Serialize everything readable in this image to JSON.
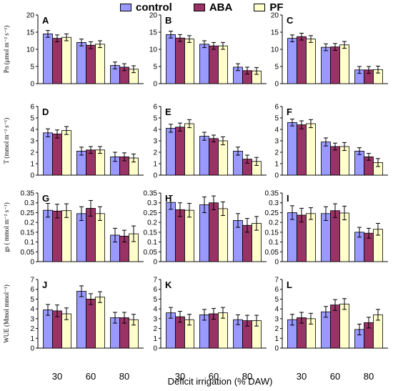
{
  "legend": {
    "control": "control",
    "aba": "ABA",
    "pf": "PF"
  },
  "colors": {
    "control": "#9999ff",
    "aba": "#993366",
    "pf": "#ffffcc"
  },
  "axes": {
    "x_title": "Deficit irrigation (% DAW)",
    "x_categories": [
      "30",
      "60",
      "80"
    ],
    "rows": [
      {
        "ylabel": "Pn (μmol m⁻² s⁻¹)",
        "ylim": [
          0,
          20
        ],
        "ticks": [
          "0",
          "5",
          "10",
          "15",
          "20"
        ]
      },
      {
        "ylabel": "T (mmol m⁻² s⁻¹)",
        "ylim": [
          0,
          6
        ],
        "ticks": [
          "0",
          "1",
          "2",
          "3",
          "4",
          "5",
          "6"
        ]
      },
      {
        "ylabel": "gs ( mmol m⁻² s⁻¹)",
        "ylim": [
          0,
          0.35
        ],
        "ticks": [
          "0",
          "0.05",
          "0.1",
          "0.15",
          "0.2",
          "0.25",
          "0.3",
          "0.35"
        ]
      },
      {
        "ylabel": "WUE (Mmol mmol⁻¹)",
        "ylim": [
          0,
          7
        ],
        "ticks": [
          "0",
          "1",
          "2",
          "3",
          "4",
          "5",
          "6",
          "7"
        ]
      }
    ]
  },
  "chart_data": [
    {
      "type": "bar",
      "panel": "A",
      "categories": [
        "30",
        "60",
        "80"
      ],
      "ylim": [
        0,
        20
      ],
      "series": [
        {
          "name": "control",
          "values": [
            14.5,
            12.0,
            5.3
          ],
          "errors": [
            1.0,
            1.0,
            1.0
          ]
        },
        {
          "name": "ABA",
          "values": [
            13.2,
            11.2,
            4.8
          ],
          "errors": [
            1.0,
            1.0,
            1.0
          ]
        },
        {
          "name": "PF",
          "values": [
            13.5,
            11.5,
            4.2
          ],
          "errors": [
            1.0,
            1.0,
            1.0
          ]
        }
      ]
    },
    {
      "type": "bar",
      "panel": "B",
      "categories": [
        "30",
        "60",
        "80"
      ],
      "ylim": [
        0,
        20
      ],
      "series": [
        {
          "name": "control",
          "values": [
            14.3,
            11.5,
            4.8
          ],
          "errors": [
            1.0,
            1.0,
            1.0
          ]
        },
        {
          "name": "ABA",
          "values": [
            13.3,
            11.0,
            3.8
          ],
          "errors": [
            1.0,
            1.0,
            1.0
          ]
        },
        {
          "name": "PF",
          "values": [
            13.0,
            11.0,
            3.7
          ],
          "errors": [
            1.0,
            1.0,
            1.0
          ]
        }
      ]
    },
    {
      "type": "bar",
      "panel": "C",
      "categories": [
        "30",
        "60",
        "80"
      ],
      "ylim": [
        0,
        20
      ],
      "series": [
        {
          "name": "control",
          "values": [
            13.2,
            10.6,
            4.0
          ],
          "errors": [
            1.0,
            1.0,
            1.0
          ]
        },
        {
          "name": "ABA",
          "values": [
            13.7,
            10.7,
            4.0
          ],
          "errors": [
            1.0,
            1.0,
            1.0
          ]
        },
        {
          "name": "PF",
          "values": [
            13.0,
            11.3,
            4.1
          ],
          "errors": [
            1.0,
            1.0,
            1.0
          ]
        }
      ]
    },
    {
      "type": "bar",
      "panel": "D",
      "categories": [
        "30",
        "60",
        "80"
      ],
      "ylim": [
        0,
        6
      ],
      "series": [
        {
          "name": "control",
          "values": [
            3.7,
            2.1,
            1.6
          ],
          "errors": [
            0.35,
            0.35,
            0.4
          ]
        },
        {
          "name": "ABA",
          "values": [
            3.6,
            2.2,
            1.6
          ],
          "errors": [
            0.35,
            0.3,
            0.35
          ]
        },
        {
          "name": "PF",
          "values": [
            3.9,
            2.2,
            1.5
          ],
          "errors": [
            0.35,
            0.3,
            0.35
          ]
        }
      ]
    },
    {
      "type": "bar",
      "panel": "E",
      "categories": [
        "30",
        "60",
        "80"
      ],
      "ylim": [
        0,
        6
      ],
      "series": [
        {
          "name": "control",
          "values": [
            4.1,
            3.4,
            2.1
          ],
          "errors": [
            0.35,
            0.35,
            0.35
          ]
        },
        {
          "name": "ABA",
          "values": [
            4.2,
            3.2,
            1.4
          ],
          "errors": [
            0.35,
            0.3,
            0.35
          ]
        },
        {
          "name": "PF",
          "values": [
            4.5,
            3.0,
            1.2
          ],
          "errors": [
            0.35,
            0.35,
            0.35
          ]
        }
      ]
    },
    {
      "type": "bar",
      "panel": "F",
      "categories": [
        "30",
        "60",
        "80"
      ],
      "ylim": [
        0,
        6
      ],
      "series": [
        {
          "name": "control",
          "values": [
            4.6,
            2.9,
            2.1
          ],
          "errors": [
            0.3,
            0.35,
            0.3
          ]
        },
        {
          "name": "ABA",
          "values": [
            4.4,
            2.5,
            1.6
          ],
          "errors": [
            0.35,
            0.3,
            0.3
          ]
        },
        {
          "name": "PF",
          "values": [
            4.5,
            2.5,
            1.1
          ],
          "errors": [
            0.35,
            0.35,
            0.35
          ]
        }
      ]
    },
    {
      "type": "bar",
      "panel": "G",
      "categories": [
        "30",
        "60",
        "80"
      ],
      "ylim": [
        0,
        0.35
      ],
      "series": [
        {
          "name": "control",
          "values": [
            0.262,
            0.245,
            0.135
          ],
          "errors": [
            0.035,
            0.035,
            0.035
          ]
        },
        {
          "name": "ABA",
          "values": [
            0.258,
            0.272,
            0.13
          ],
          "errors": [
            0.035,
            0.04,
            0.03
          ]
        },
        {
          "name": "PF",
          "values": [
            0.26,
            0.245,
            0.142
          ],
          "errors": [
            0.035,
            0.035,
            0.04
          ]
        }
      ]
    },
    {
      "type": "bar",
      "panel": "H",
      "categories": [
        "30",
        "60",
        "80"
      ],
      "ylim": [
        0,
        0.35
      ],
      "series": [
        {
          "name": "control",
          "values": [
            0.302,
            0.29,
            0.21
          ],
          "errors": [
            0.035,
            0.04,
            0.035
          ]
        },
        {
          "name": "ABA",
          "values": [
            0.265,
            0.3,
            0.185
          ],
          "errors": [
            0.035,
            0.035,
            0.035
          ]
        },
        {
          "name": "PF",
          "values": [
            0.262,
            0.27,
            0.195
          ],
          "errors": [
            0.035,
            0.035,
            0.035
          ]
        }
      ]
    },
    {
      "type": "bar",
      "panel": "I",
      "categories": [
        "30",
        "60",
        "80"
      ],
      "ylim": [
        0,
        0.35
      ],
      "series": [
        {
          "name": "control",
          "values": [
            0.25,
            0.245,
            0.15
          ],
          "errors": [
            0.035,
            0.035,
            0.025
          ]
        },
        {
          "name": "ABA",
          "values": [
            0.237,
            0.26,
            0.145
          ],
          "errors": [
            0.035,
            0.035,
            0.025
          ]
        },
        {
          "name": "PF",
          "values": [
            0.245,
            0.248,
            0.165
          ],
          "errors": [
            0.03,
            0.035,
            0.03
          ]
        }
      ]
    },
    {
      "type": "bar",
      "panel": "J",
      "categories": [
        "30",
        "60",
        "80"
      ],
      "ylim": [
        0,
        7
      ],
      "series": [
        {
          "name": "control",
          "values": [
            3.9,
            5.8,
            3.1
          ],
          "errors": [
            0.55,
            0.55,
            0.55
          ]
        },
        {
          "name": "ABA",
          "values": [
            3.8,
            5.0,
            3.1
          ],
          "errors": [
            0.6,
            0.55,
            0.55
          ]
        },
        {
          "name": "PF",
          "values": [
            3.5,
            5.2,
            2.9
          ],
          "errors": [
            0.6,
            0.55,
            0.55
          ]
        }
      ]
    },
    {
      "type": "bar",
      "panel": "K",
      "categories": [
        "30",
        "60",
        "80"
      ],
      "ylim": [
        0,
        7
      ],
      "series": [
        {
          "name": "control",
          "values": [
            3.6,
            3.4,
            2.9
          ],
          "errors": [
            0.55,
            0.55,
            0.5
          ]
        },
        {
          "name": "ABA",
          "values": [
            3.2,
            3.5,
            2.8
          ],
          "errors": [
            0.55,
            0.55,
            0.55
          ]
        },
        {
          "name": "PF",
          "values": [
            2.9,
            3.6,
            2.8
          ],
          "errors": [
            0.55,
            0.55,
            0.55
          ]
        }
      ]
    },
    {
      "type": "bar",
      "panel": "L",
      "categories": [
        "30",
        "60",
        "80"
      ],
      "ylim": [
        0,
        7
      ],
      "series": [
        {
          "name": "control",
          "values": [
            2.9,
            3.7,
            1.9
          ],
          "errors": [
            0.55,
            0.55,
            0.55
          ]
        },
        {
          "name": "ABA",
          "values": [
            3.1,
            4.4,
            2.6
          ],
          "errors": [
            0.55,
            0.55,
            0.55
          ]
        },
        {
          "name": "PF",
          "values": [
            3.0,
            4.5,
            3.4
          ],
          "errors": [
            0.55,
            0.55,
            0.55
          ]
        }
      ]
    }
  ]
}
